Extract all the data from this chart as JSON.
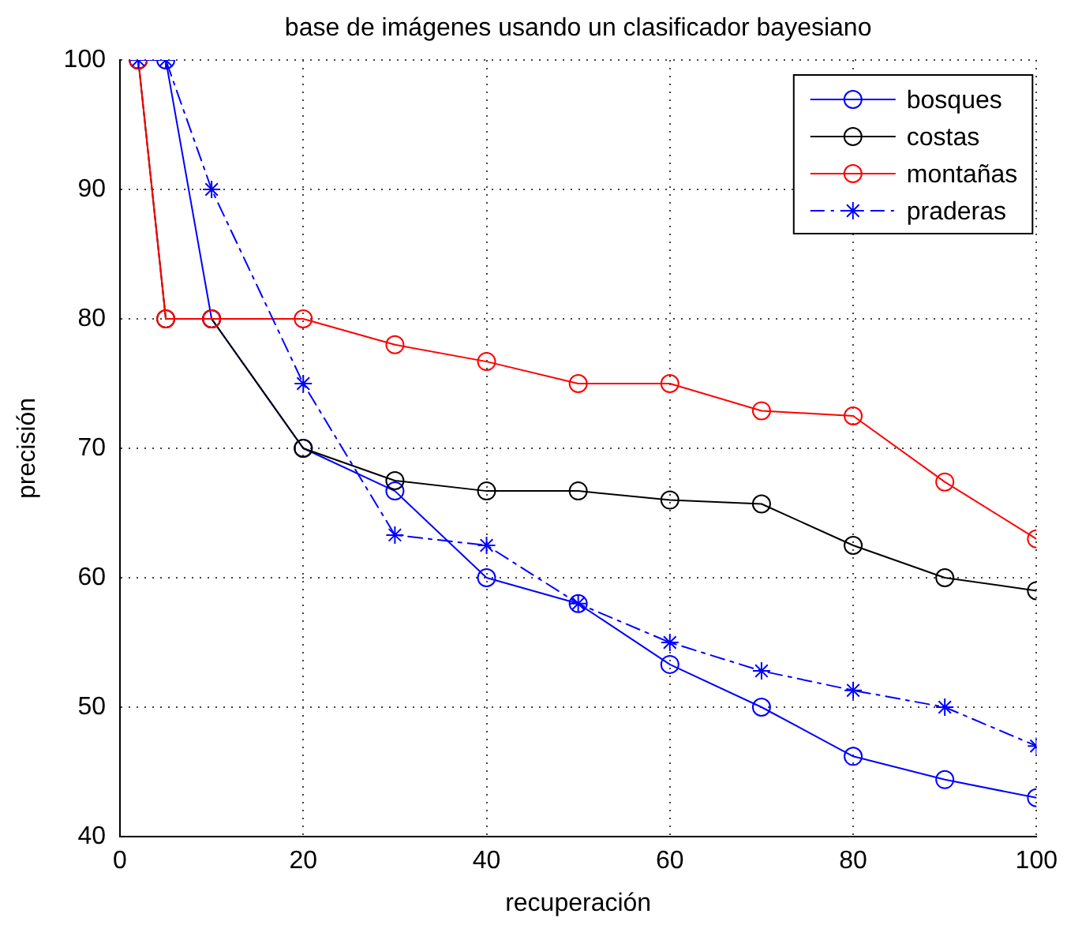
{
  "chart_data": {
    "type": "line",
    "title": "base de imágenes usando un clasificador bayesiano",
    "xlabel": "recuperación",
    "ylabel": "precisión",
    "x": [
      2,
      5,
      10,
      20,
      30,
      40,
      50,
      60,
      70,
      80,
      90,
      100
    ],
    "series": [
      {
        "name": "bosques",
        "color": "#0000ff",
        "marker": "circle",
        "line_style": "solid",
        "values": [
          100,
          100,
          80,
          70,
          66.7,
          60,
          58,
          53.3,
          50,
          46.2,
          44.4,
          43
        ]
      },
      {
        "name": "costas",
        "color": "#000000",
        "marker": "circle",
        "line_style": "solid",
        "values": [
          100,
          80,
          80,
          70,
          67.5,
          66.7,
          66.7,
          66,
          65.7,
          62.5,
          60,
          59
        ]
      },
      {
        "name": "montañas",
        "color": "#ff0000",
        "marker": "circle",
        "line_style": "solid",
        "values": [
          100,
          80,
          80,
          80,
          78,
          76.7,
          75,
          75,
          72.9,
          72.5,
          67.4,
          63
        ]
      },
      {
        "name": "praderas",
        "color": "#0000ff",
        "marker": "cross",
        "line_style": "dashdot",
        "values": [
          100,
          100,
          90,
          75,
          63.3,
          62.5,
          58,
          55,
          52.8,
          51.3,
          50,
          47
        ]
      }
    ],
    "xlim": [
      0,
      100
    ],
    "xticks": [
      0,
      20,
      40,
      60,
      80,
      100
    ],
    "ylim": [
      40,
      100
    ],
    "yticks": [
      40,
      50,
      60,
      70,
      80,
      90,
      100
    ],
    "grid": true,
    "legend": "top right"
  }
}
